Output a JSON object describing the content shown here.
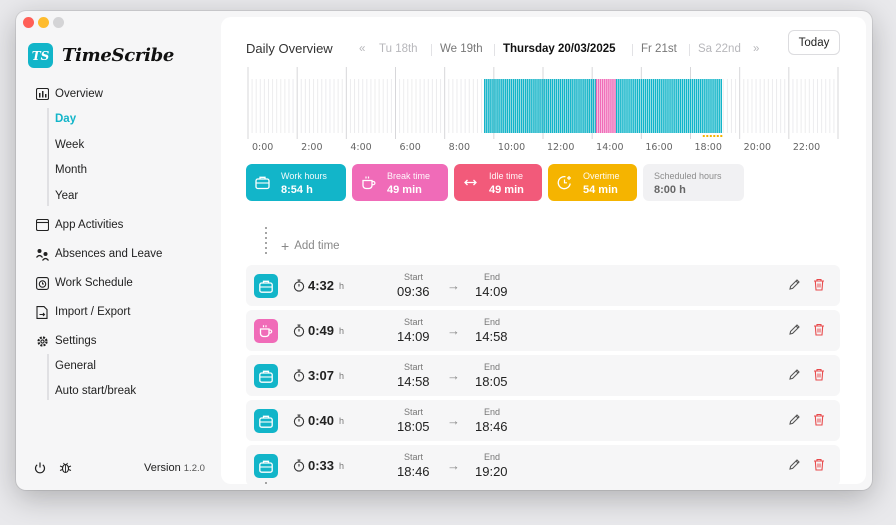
{
  "app": {
    "name": "TimeScribe",
    "logo_text": "TS",
    "version_label": "Version",
    "version": "1.2.0"
  },
  "colors": {
    "accent": "#12b5c9",
    "work": "#12b5c9",
    "break": "#f06bb8",
    "idle": "#f25a7a",
    "overtime": "#f5b400",
    "scheduled": "#f1f1f3",
    "delete": "#e8494b"
  },
  "sidebar": {
    "items": [
      {
        "label": "Overview",
        "icon": "chart-icon"
      },
      {
        "label": "App Activities",
        "icon": "window-icon"
      },
      {
        "label": "Absences and Leave",
        "icon": "people-icon"
      },
      {
        "label": "Work Schedule",
        "icon": "clock-schedule-icon"
      },
      {
        "label": "Import / Export",
        "icon": "file-transfer-icon"
      },
      {
        "label": "Settings",
        "icon": "gear-icon"
      }
    ],
    "overview_sub": [
      "Day",
      "Week",
      "Month",
      "Year"
    ],
    "settings_sub": [
      "General",
      "Auto start/break"
    ],
    "active_sub": "Day"
  },
  "header": {
    "title": "Daily Overview",
    "prev_all": "«",
    "next_all": "»",
    "days": [
      "Tu 18th",
      "We 19th",
      "Thursday 20/03/2025",
      "Fr 21st",
      "Sa 22nd"
    ],
    "today_button": "Today"
  },
  "timeline": {
    "tick_labels": [
      "0:00",
      "2:00",
      "4:00",
      "6:00",
      "8:00",
      "10:00",
      "12:00",
      "14:00",
      "16:00",
      "18:00",
      "20:00",
      "22:00"
    ],
    "segments": [
      {
        "type": "work",
        "start": 9.6,
        "end": 14.15
      },
      {
        "type": "break",
        "start": 14.15,
        "end": 14.97
      },
      {
        "type": "work",
        "start": 14.97,
        "end": 19.33
      }
    ],
    "overtime_marker": {
      "start": 18.5,
      "end": 19.33
    }
  },
  "summary": [
    {
      "key": "work",
      "label": "Work hours",
      "value": "8:54 h",
      "icon": "briefcase-icon"
    },
    {
      "key": "break",
      "label": "Break time",
      "value": "49 min",
      "icon": "coffee-icon"
    },
    {
      "key": "idle",
      "label": "Idle time",
      "value": "49 min",
      "icon": "arrows-horizontal-icon"
    },
    {
      "key": "overtime",
      "label": "Overtime",
      "value": "54 min",
      "icon": "clock-plus-icon"
    },
    {
      "key": "scheduled",
      "label": "Scheduled hours",
      "value": "8:00 h",
      "icon": ""
    }
  ],
  "add_time_label": "Add time",
  "entries_labels": {
    "start": "Start",
    "end": "End",
    "unit": "h",
    "arrow": "→"
  },
  "entries": [
    {
      "type": "work",
      "duration": "4:32",
      "start": "09:36",
      "end": "14:09"
    },
    {
      "type": "break",
      "duration": "0:49",
      "start": "14:09",
      "end": "14:58"
    },
    {
      "type": "work",
      "duration": "3:07",
      "start": "14:58",
      "end": "18:05"
    },
    {
      "type": "work",
      "duration": "0:40",
      "start": "18:05",
      "end": "18:46"
    },
    {
      "type": "work",
      "duration": "0:33",
      "start": "18:46",
      "end": "19:20"
    }
  ]
}
